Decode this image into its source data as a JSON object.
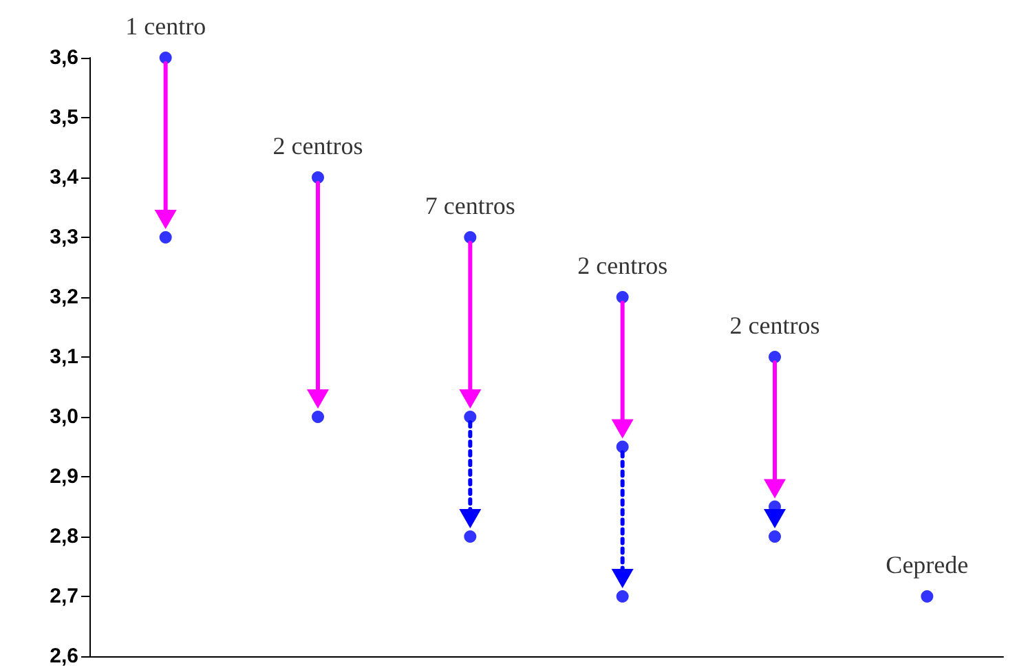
{
  "chart_data": {
    "type": "scatter",
    "categories": [
      null,
      null,
      null,
      null,
      null,
      null
    ],
    "ylim": [
      2.6,
      3.6
    ],
    "yticks": [
      {
        "value": 2.6,
        "label": "2,6"
      },
      {
        "value": 2.7,
        "label": "2,7"
      },
      {
        "value": 2.8,
        "label": "2,8"
      },
      {
        "value": 2.9,
        "label": "2,9"
      },
      {
        "value": 3.0,
        "label": "3,0"
      },
      {
        "value": 3.1,
        "label": "3,1"
      },
      {
        "value": 3.2,
        "label": "3,2"
      },
      {
        "value": 3.3,
        "label": "3,3"
      },
      {
        "value": 3.4,
        "label": "3,4"
      },
      {
        "value": 3.5,
        "label": "3,5"
      },
      {
        "value": 3.6,
        "label": "3,6"
      }
    ],
    "tick_labels": "y",
    "marker": "circle",
    "series": [
      {
        "color": "#0000ff",
        "values": [
          3.6,
          3.4,
          3.3,
          3.2,
          3.1,
          null
        ]
      },
      {
        "color": "#0000ff",
        "line_style": "solid",
        "values": [
          3.3,
          3.0,
          3.0,
          2.95,
          2.85,
          null
        ]
      },
      {
        "color": "#0000ff",
        "line_style": "dotted",
        "values": [
          null,
          null,
          2.8,
          2.7,
          2.8,
          2.7
        ]
      }
    ],
    "annotations": [
      "1 centro",
      "2 centros",
      "7 centros",
      "2 centros",
      "2 centros",
      "Ceprede"
    ]
  }
}
